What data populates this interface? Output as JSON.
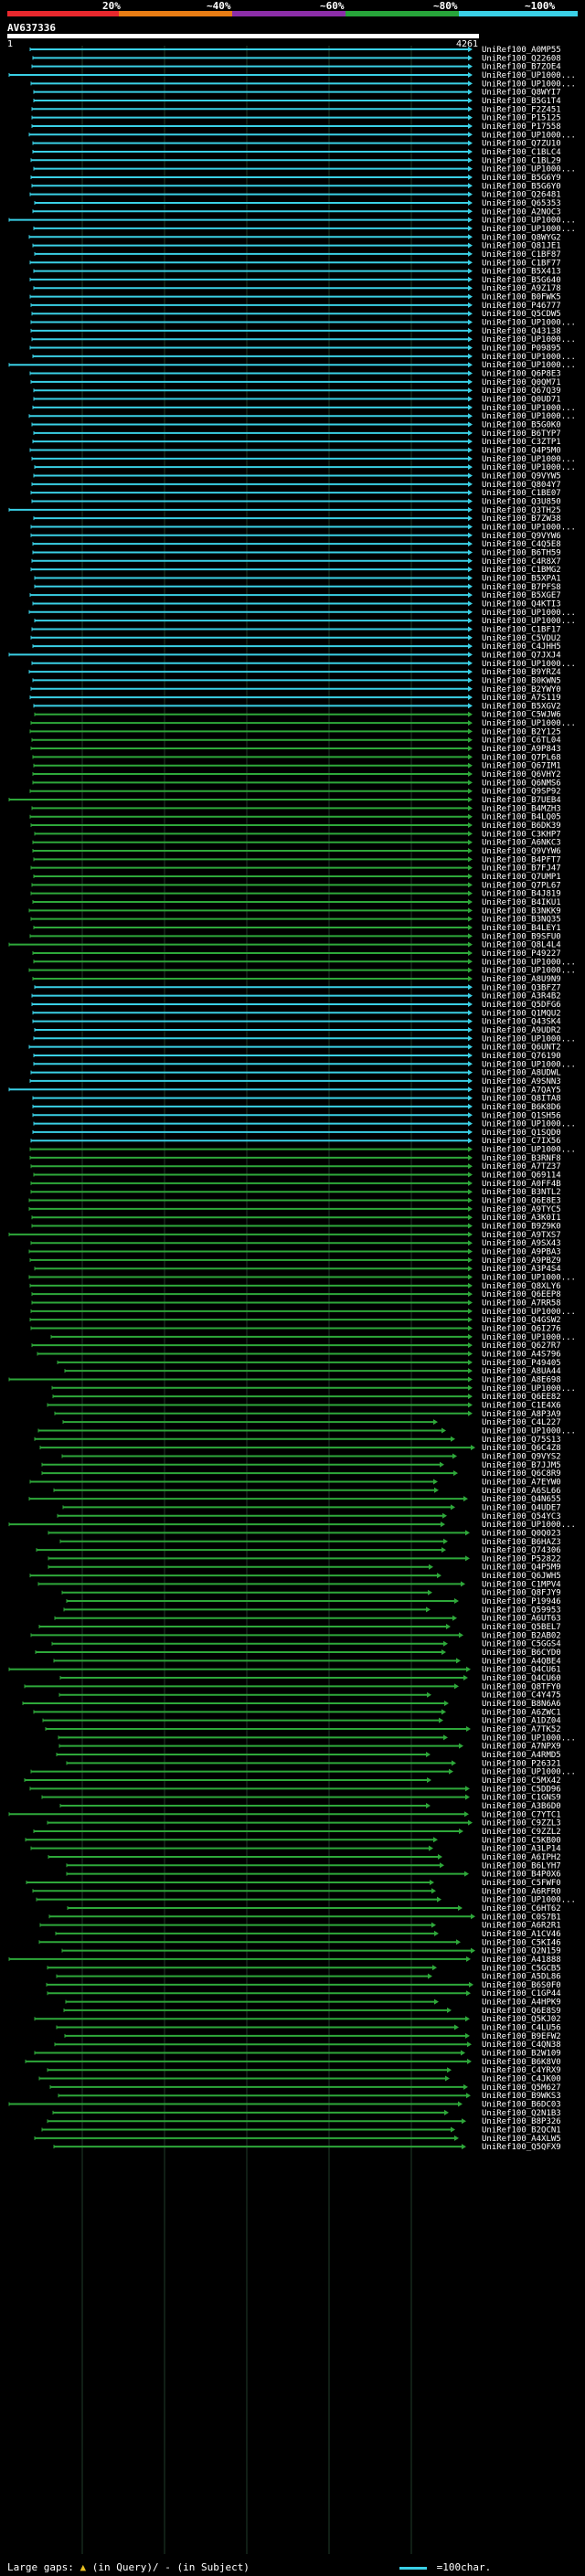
{
  "scale": {
    "labels": [
      "20%",
      "~40%",
      "~60%",
      "~80%",
      "~100%"
    ],
    "colors": [
      "#e8282d",
      "#e87d14",
      "#8c2ea8",
      "#27a53a",
      "#3ad0e6"
    ]
  },
  "query": {
    "name": "AV637336",
    "start": "1",
    "end": "4261"
  },
  "colors": {
    "cyan": "#3ad0e6",
    "green": "#2ea83a",
    "grid": "#1f3b2a"
  },
  "hits": [
    "UniRef100_A0MP55",
    "UniRef100_Q22608",
    "UniRef100_B7ZOE4",
    "UniRef100_UP1000...",
    "UniRef100_UP1000...",
    "UniRef100_Q8WYI7",
    "UniRef100_B5G1T4",
    "UniRef100_F2Z451",
    "UniRef100_P15125",
    "UniRef100_P17558",
    "UniRef100_UP1000...",
    "UniRef100_Q7ZU10",
    "UniRef100_C1BLC4",
    "UniRef100_C1BL29",
    "UniRef100_UP1000...",
    "UniRef100_B5G6Y9",
    "UniRef100_B5G6Y0",
    "UniRef100_Q26481",
    "UniRef100_Q65353",
    "UniRef100_A2NOC3",
    "UniRef100_UP1000...",
    "UniRef100_UP1000...",
    "UniRef100_Q8WYG2",
    "UniRef100_Q81JE1",
    "UniRef100_C1BF87",
    "UniRef100_C1BF77",
    "UniRef100_B5X413",
    "UniRef100_B5G640",
    "UniRef100_A9Z178",
    "UniRef100_B0FWK5",
    "UniRef100_P46777",
    "UniRef100_Q5CDW5",
    "UniRef100_UP1000...",
    "UniRef100_Q43138",
    "UniRef100_UP1000...",
    "UniRef100_P09895",
    "UniRef100_UP1000...",
    "UniRef100_UP1000...",
    "UniRef100_Q6P8E3",
    "UniRef100_Q0QM71",
    "UniRef100_Q67Q39",
    "UniRef100_Q0UD71",
    "UniRef100_UP1000...",
    "UniRef100_UP1000...",
    "UniRef100_B5G0K0",
    "UniRef100_B6TYP7",
    "UniRef100_C3ZTP1",
    "UniRef100_Q4P5M0",
    "UniRef100_UP1000...",
    "UniRef100_UP1000...",
    "UniRef100_Q9VYW5",
    "UniRef100_Q804Y7",
    "UniRef100_C1BE07",
    "UniRef100_Q3U850",
    "UniRef100_Q3TH25",
    "UniRef100_B7ZW38",
    "UniRef100_UP1000...",
    "UniRef100_Q9VYW6",
    "UniRef100_C4Q5E8",
    "UniRef100_B6TH59",
    "UniRef100_C4R8X7",
    "UniRef100_C1BMG2",
    "UniRef100_B5XPA1",
    "UniRef100_B7PFS8",
    "UniRef100_B5XGE7",
    "UniRef100_Q4KTI3",
    "UniRef100_UP1000...",
    "UniRef100_UP1000...",
    "UniRef100_C1BF17",
    "UniRef100_C5VDU2",
    "UniRef100_C4JHH5",
    "UniRef100_Q7JXJ4",
    "UniRef100_UP1000...",
    "UniRef100_B9YRZ4",
    "UniRef100_B0KWN5",
    "UniRef100_B2YWY0",
    "UniRef100_A7S119",
    "UniRef100_B5XGV2",
    "UniRef100_C5WJW6",
    "UniRef100_UP1000...",
    "UniRef100_B2Y125",
    "UniRef100_C6TL04",
    "UniRef100_A9P843",
    "UniRef100_Q7PL68",
    "UniRef100_Q67IM1",
    "UniRef100_Q6VHY2",
    "UniRef100_Q6NMS6",
    "UniRef100_Q9SP92",
    "UniRef100_B7UEB4",
    "UniRef100_B4MZH3",
    "UniRef100_B4LQ05",
    "UniRef100_B6DK39",
    "UniRef100_C3KHP7",
    "UniRef100_A6NKC3",
    "UniRef100_Q9VYW6",
    "UniRef100_B4PFT7",
    "UniRef100_B7FJ47",
    "UniRef100_Q7UMP1",
    "UniRef100_Q7PL67",
    "UniRef100_B4J819",
    "UniRef100_B4IKU1",
    "UniRef100_B3NKK9",
    "UniRef100_B3NQ35",
    "UniRef100_B4LEY1",
    "UniRef100_B9SFU0",
    "UniRef100_Q8L4L4",
    "UniRef100_P49227",
    "UniRef100_UP1000...",
    "UniRef100_UP1000...",
    "UniRef100_A8U9N9",
    "UniRef100_Q3BFZ7",
    "UniRef100_A3R4B2",
    "UniRef100_Q5DFG6",
    "UniRef100_Q1MQU2",
    "UniRef100_Q43SK4",
    "UniRef100_A9UDR2",
    "UniRef100_UP1000...",
    "UniRef100_Q6UNT2",
    "UniRef100_Q76190",
    "UniRef100_UP1000...",
    "UniRef100_A8UDWL",
    "UniRef100_A9SNN3",
    "UniRef100_A7QAY5",
    "UniRef100_Q8ITA8",
    "UniRef100_B6K8D6",
    "UniRef100_Q1SH56",
    "UniRef100_UP1000...",
    "UniRef100_Q1SQD0",
    "UniRef100_C7IX56",
    "UniRef100_UP1000...",
    "UniRef100_B3RNF8",
    "UniRef100_A7TZ37",
    "UniRef100_Q69114",
    "UniRef100_A0FF4B",
    "UniRef100_B3NTL2",
    "UniRef100_Q6E8E3",
    "UniRef100_A9TYC5",
    "UniRef100_A3K0I1",
    "UniRef100_B9Z9K0",
    "UniRef100_A9TXS7",
    "UniRef100_A9SX43",
    "UniRef100_A9PBA3",
    "UniRef100_A9PBZ9",
    "UniRef100_A3P4S4",
    "UniRef100_UP1000...",
    "UniRef100_Q8XLY6",
    "UniRef100_Q6EEP8",
    "UniRef100_A7RR58",
    "UniRef100_UP1000...",
    "UniRef100_Q4GSW2",
    "UniRef100_Q6I276",
    "UniRef100_UP1000...",
    "UniRef100_Q627R7",
    "UniRef100_A4S796",
    "UniRef100_P49405",
    "UniRef100_A8UA44",
    "UniRef100_A8E698",
    "UniRef100_UP1000...",
    "UniRef100_Q6EE82",
    "UniRef100_C1E4X6",
    "UniRef100_A8P3A9",
    "UniRef100_C4L227",
    "UniRef100_UP1000...",
    "UniRef100_Q75S13",
    "UniRef100_Q6C4Z8",
    "UniRef100_Q9VYS2",
    "UniRef100_B7JJM5",
    "UniRef100_Q6C8R9",
    "UniRef100_A7EYW0",
    "UniRef100_A6SL66",
    "UniRef100_Q4N655",
    "UniRef100_Q4UDE7",
    "UniRef100_Q54YC3",
    "UniRef100_UP1000...",
    "UniRef100_Q0Q023",
    "UniRef100_B6HAZ3",
    "UniRef100_Q74306",
    "UniRef100_P52822",
    "UniRef100_Q4P5M9",
    "UniRef100_Q6JWH5",
    "UniRef100_C1MPV4",
    "UniRef100_Q8FJY9",
    "UniRef100_P19946",
    "UniRef100_Q59953",
    "UniRef100_A6UT63",
    "UniRef100_Q5BEL7",
    "UniRef100_B2AB02",
    "UniRef100_C5GGS4",
    "UniRef100_B6CYD0",
    "UniRef100_A4QBE4",
    "UniRef100_Q4CU61",
    "UniRef100_Q4CU60",
    "UniRef100_Q8TFY0",
    "UniRef100_C4Y475",
    "UniRef100_B8N6A6",
    "UniRef100_A6ZWC1",
    "UniRef100_A1DZ04",
    "UniRef100_A7TK52",
    "UniRef100_UP1000...",
    "UniRef100_A7NPX9",
    "UniRef100_A4RMD5",
    "UniRef100_P26321",
    "UniRef100_UP1000...",
    "UniRef100_C5MX42",
    "UniRef100_C5DD96",
    "UniRef100_C1GNS9",
    "UniRef100_A3B6D0",
    "UniRef100_C7YTC1",
    "UniRef100_C9ZZL3",
    "UniRef100_C9ZZL2",
    "UniRef100_C5KB00",
    "UniRef100_A3LP14",
    "UniRef100_A6IPH2",
    "UniRef100_B6LYH7",
    "UniRef100_B4P0X6",
    "UniRef100_C5FWF0",
    "UniRef100_A6RFR0",
    "UniRef100_UP1000...",
    "UniRef100_C6HT62",
    "UniRef100_C0S7B1",
    "UniRef100_A6R2R1",
    "UniRef100_A1CV46",
    "UniRef100_C5KI46",
    "UniRef100_Q2N159",
    "UniRef100_A41888",
    "UniRef100_C5GCB5",
    "UniRef100_A5DL86",
    "UniRef100_B6S0F0",
    "UniRef100_C1GP44",
    "UniRef100_A4HPK9",
    "UniRef100_Q6E8S9",
    "UniRef100_Q5KJ02",
    "UniRef100_C4LU56",
    "UniRef100_B9EFW2",
    "UniRef100_C4QN38",
    "UniRef100_B2W109",
    "UniRef100_B6K8V0",
    "UniRef100_C4YRX9",
    "UniRef100_C4JK00",
    "UniRef100_Q5M627",
    "UniRef100_B9WKS3",
    "UniRef100_B6DC03",
    "UniRef100_Q2N1B3",
    "UniRef100_B8P326",
    "UniRef100_B2QCN1",
    "UniRef100_A4XLW5",
    "UniRef100_Q5QFX9"
  ],
  "legend": {
    "gaps_label": "Large gaps:",
    "in_query": "(in Query)/",
    "in_subject": "- (in Subject)",
    "scale_label": "=100char."
  }
}
